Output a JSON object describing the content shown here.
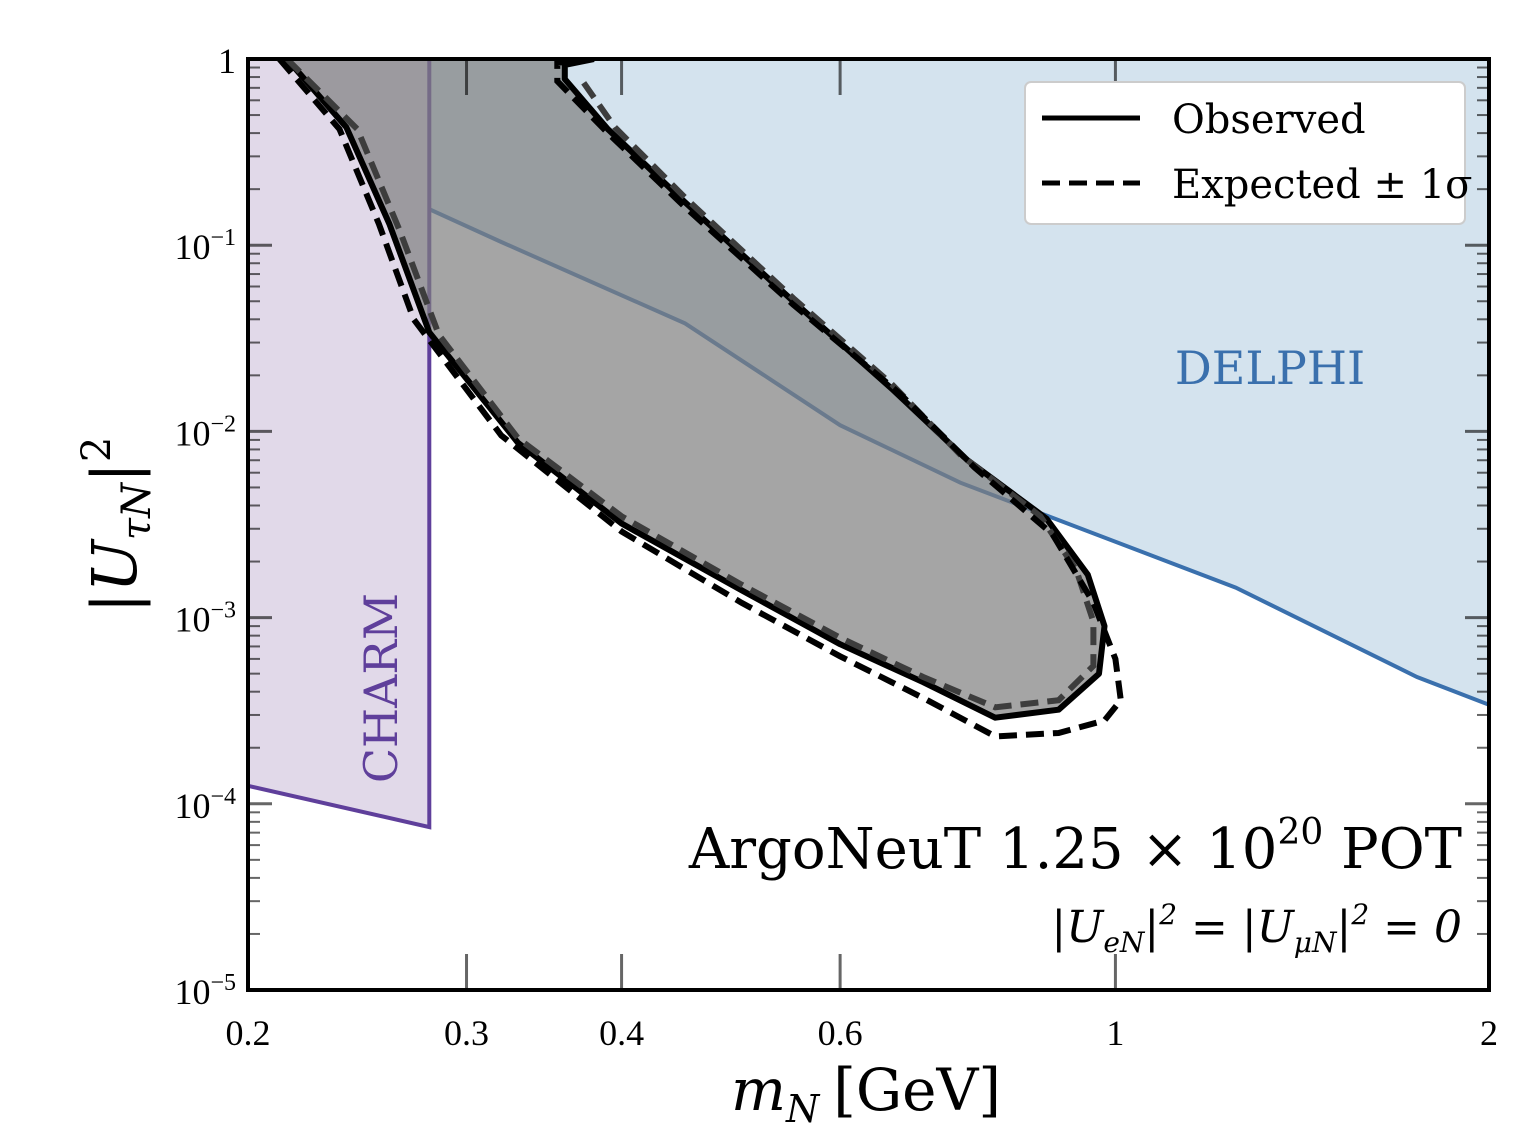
{
  "chart_data": {
    "type": "area",
    "xlabel": {
      "symbol": "m",
      "sub": "N",
      "unit": "[GeV]"
    },
    "ylabel": {
      "prefix": "|U",
      "sub": "τN",
      "suffix": "|",
      "sup": "2"
    },
    "xscale": "log",
    "yscale": "log",
    "xlim": [
      0.2,
      2.0
    ],
    "ylim": [
      1e-05,
      1
    ],
    "x_tick_labels": [
      {
        "value": 0.2,
        "label": "0.2"
      },
      {
        "value": 0.3,
        "label": "0.3"
      },
      {
        "value": 0.4,
        "label": "0.4"
      },
      {
        "value": 0.6,
        "label": "0.6"
      },
      {
        "value": 1.0,
        "label": "1"
      },
      {
        "value": 2.0,
        "label": "2"
      }
    ],
    "y_tick_labels": [
      {
        "value": 1,
        "base": "1",
        "exp": ""
      },
      {
        "value": 0.1,
        "base": "10",
        "exp": "−1"
      },
      {
        "value": 0.01,
        "base": "10",
        "exp": "−2"
      },
      {
        "value": 0.001,
        "base": "10",
        "exp": "−3"
      },
      {
        "value": 0.0001,
        "base": "10",
        "exp": "−4"
      },
      {
        "value": 1e-05,
        "base": "10",
        "exp": "−5"
      }
    ],
    "legend": {
      "position": "top-right",
      "entries": [
        {
          "label": "Observed",
          "style": "solid",
          "color": "#000000"
        },
        {
          "label": "Expected ± 1σ",
          "style": "dashed",
          "color": "#000000"
        }
      ]
    },
    "annotations": {
      "title": {
        "main": "ArgoNeuT 1.25 × 10",
        "sup": "20",
        "tail": " POT"
      },
      "subtitle": "|U_eN|² = |U_μN|² = 0",
      "subtitle_parts": {
        "a": "|U",
        "a_sub": "eN",
        "a_end": "|",
        "a_sup": "2",
        "eq1": " = |U",
        "b_sub": "μN",
        "b_end": "|",
        "b_sup": "2",
        "eq2": " = 0"
      }
    },
    "series": [
      {
        "name": "DELPHI",
        "kind": "excluded-region",
        "color": "#3a70ad",
        "fill": "#d4e3ee",
        "boundary": [
          {
            "x": 0.215,
            "y": 1.0
          },
          {
            "x": 0.24,
            "y": 0.47
          },
          {
            "x": 0.25,
            "y": 0.22
          },
          {
            "x": 0.32,
            "y": 0.104
          },
          {
            "x": 0.45,
            "y": 0.038
          },
          {
            "x": 0.6,
            "y": 0.0108
          },
          {
            "x": 0.75,
            "y": 0.0053
          },
          {
            "x": 1.25,
            "y": 0.00145
          },
          {
            "x": 1.75,
            "y": 0.00048
          },
          {
            "x": 2.0,
            "y": 0.00034
          }
        ]
      },
      {
        "name": "CHARM",
        "kind": "excluded-region",
        "color": "#5f3f9b",
        "fill": "#e1d9e9",
        "boundary": [
          {
            "x": 0.2,
            "y": 0.000125
          },
          {
            "x": 0.28,
            "y": 7.5e-05
          },
          {
            "x": 0.28,
            "y": 1.0
          }
        ]
      },
      {
        "name": "Observed",
        "kind": "contour",
        "color": "#000000",
        "fill": "#7f7f7f",
        "boundary": [
          {
            "x": 0.215,
            "y": 1.0
          },
          {
            "x": 0.24,
            "y": 0.43
          },
          {
            "x": 0.26,
            "y": 0.13
          },
          {
            "x": 0.28,
            "y": 0.034
          },
          {
            "x": 0.33,
            "y": 0.0087
          },
          {
            "x": 0.4,
            "y": 0.0032
          },
          {
            "x": 0.5,
            "y": 0.0014
          },
          {
            "x": 0.6,
            "y": 0.00072
          },
          {
            "x": 0.7,
            "y": 0.00045
          },
          {
            "x": 0.8,
            "y": 0.00029
          },
          {
            "x": 0.9,
            "y": 0.00032
          },
          {
            "x": 0.97,
            "y": 0.0005
          },
          {
            "x": 0.98,
            "y": 0.0009
          },
          {
            "x": 0.95,
            "y": 0.0017
          },
          {
            "x": 0.88,
            "y": 0.0034
          },
          {
            "x": 0.76,
            "y": 0.007
          },
          {
            "x": 0.66,
            "y": 0.017
          },
          {
            "x": 0.55,
            "y": 0.05
          },
          {
            "x": 0.45,
            "y": 0.17
          },
          {
            "x": 0.39,
            "y": 0.42
          },
          {
            "x": 0.36,
            "y": 0.78
          },
          {
            "x": 0.36,
            "y": 0.93
          },
          {
            "x": 0.38,
            "y": 1.0
          }
        ]
      },
      {
        "name": "Expected",
        "kind": "contour",
        "style": "dashed",
        "color": "#3d3d3d",
        "boundary": [
          {
            "x": 0.215,
            "y": 1.0
          },
          {
            "x": 0.245,
            "y": 0.42
          },
          {
            "x": 0.265,
            "y": 0.12
          },
          {
            "x": 0.285,
            "y": 0.033
          },
          {
            "x": 0.33,
            "y": 0.0092
          },
          {
            "x": 0.4,
            "y": 0.0035
          },
          {
            "x": 0.5,
            "y": 0.0015
          },
          {
            "x": 0.6,
            "y": 0.00078
          },
          {
            "x": 0.7,
            "y": 0.00048
          },
          {
            "x": 0.8,
            "y": 0.00033
          },
          {
            "x": 0.9,
            "y": 0.00036
          },
          {
            "x": 0.96,
            "y": 0.00055
          },
          {
            "x": 0.96,
            "y": 0.00095
          },
          {
            "x": 0.93,
            "y": 0.0018
          },
          {
            "x": 0.87,
            "y": 0.0035
          },
          {
            "x": 0.75,
            "y": 0.0075
          },
          {
            "x": 0.66,
            "y": 0.018
          },
          {
            "x": 0.55,
            "y": 0.052
          },
          {
            "x": 0.45,
            "y": 0.18
          },
          {
            "x": 0.395,
            "y": 0.43
          },
          {
            "x": 0.37,
            "y": 0.8
          }
        ]
      },
      {
        "name": "Expected +1σ",
        "kind": "contour",
        "style": "dashed",
        "color": "#000000",
        "boundary": [
          {
            "x": 0.212,
            "y": 1.0
          },
          {
            "x": 0.237,
            "y": 0.42
          },
          {
            "x": 0.255,
            "y": 0.13
          },
          {
            "x": 0.272,
            "y": 0.04
          },
          {
            "x": 0.32,
            "y": 0.0095
          },
          {
            "x": 0.4,
            "y": 0.0029
          },
          {
            "x": 0.5,
            "y": 0.0012
          },
          {
            "x": 0.6,
            "y": 0.00062
          },
          {
            "x": 0.7,
            "y": 0.00037
          },
          {
            "x": 0.8,
            "y": 0.00023
          },
          {
            "x": 0.9,
            "y": 0.00024
          },
          {
            "x": 0.98,
            "y": 0.00028
          },
          {
            "x": 1.01,
            "y": 0.00036
          },
          {
            "x": 1.0,
            "y": 0.0006
          },
          {
            "x": 0.96,
            "y": 0.0012
          },
          {
            "x": 0.89,
            "y": 0.0028
          },
          {
            "x": 0.77,
            "y": 0.0064
          },
          {
            "x": 0.67,
            "y": 0.016
          },
          {
            "x": 0.55,
            "y": 0.048
          },
          {
            "x": 0.45,
            "y": 0.16
          },
          {
            "x": 0.39,
            "y": 0.4
          },
          {
            "x": 0.355,
            "y": 0.76
          },
          {
            "x": 0.355,
            "y": 0.95
          },
          {
            "x": 0.37,
            "y": 1.0
          }
        ]
      }
    ],
    "region_labels": [
      {
        "series": "DELPHI",
        "text": "DELPHI",
        "color": "#3a70ad"
      },
      {
        "series": "CHARM",
        "text": "CHARM",
        "color": "#5f3f9b"
      }
    ]
  }
}
